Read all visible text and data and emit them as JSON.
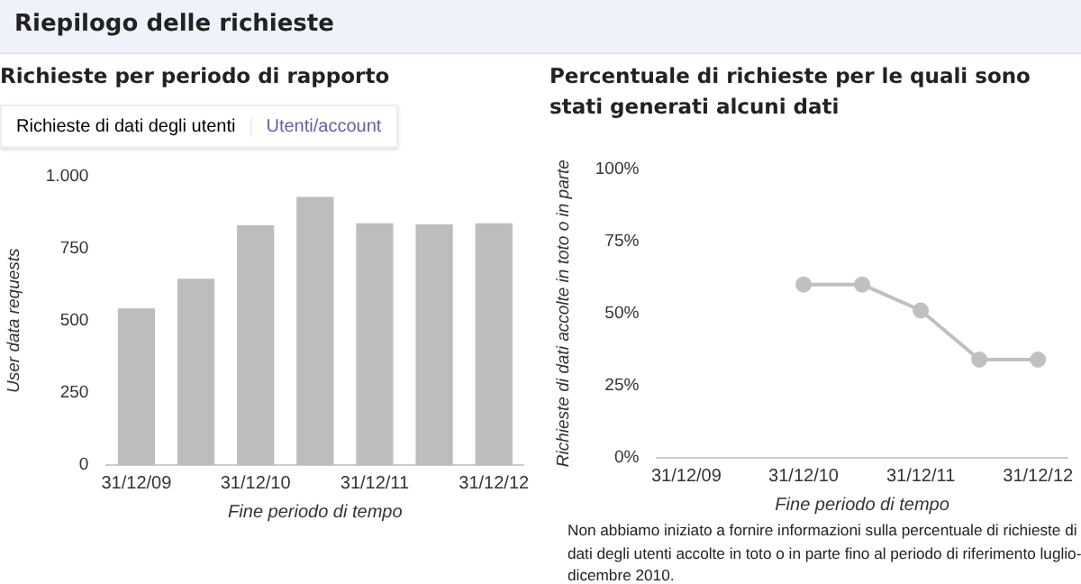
{
  "chart_data": [
    {
      "type": "bar",
      "title": "Riepilogo delle richieste",
      "subtitle": "Richieste per periodo di rapporto",
      "annotations": [
        "Richieste di dati degli utenti",
        "Utenti/account"
      ],
      "categories": [
        "31/12/09",
        null,
        "31/12/10",
        null,
        "31/12/11",
        null,
        "31/12/12"
      ],
      "values": [
        542,
        645,
        830,
        928,
        837,
        833,
        837
      ],
      "color": "#bdbdbd",
      "ylabel": "User data requests",
      "xlabel": "Fine periodo di tempo",
      "ylim": [
        0,
        1000
      ],
      "yticks": [
        0,
        250,
        500,
        750,
        {
          "value": 1000,
          "label": "1.000"
        }
      ],
      "grid": false,
      "legend": false
    },
    {
      "type": "line",
      "title": "Percentuale di richieste per le quali sono stati generati alcuni dati",
      "annotations": [
        "Non abbiamo iniziato a fornire informazioni sulla percentuale di richieste di dati degli utenti accolte in toto o in parte fino al periodo di riferimento luglio-dicembre 2010."
      ],
      "categories": [
        "31/12/09",
        null,
        "31/12/10",
        null,
        "31/12/11",
        null,
        "31/12/12"
      ],
      "values": [
        null,
        null,
        60,
        60,
        51,
        34,
        34
      ],
      "color": "#c0c0c0",
      "marker": "circle",
      "ylabel": "Richieste di dati accolte in toto o in parte",
      "xlabel": "Fine periodo di tempo",
      "ylim": [
        0,
        100
      ],
      "yticks": [
        {
          "value": 0,
          "label": "0%"
        },
        {
          "value": 25,
          "label": "25%"
        },
        {
          "value": 50,
          "label": "50%"
        },
        {
          "value": 75,
          "label": "75%"
        },
        {
          "value": 100,
          "label": "100%"
        }
      ],
      "grid": false,
      "legend": false
    }
  ]
}
